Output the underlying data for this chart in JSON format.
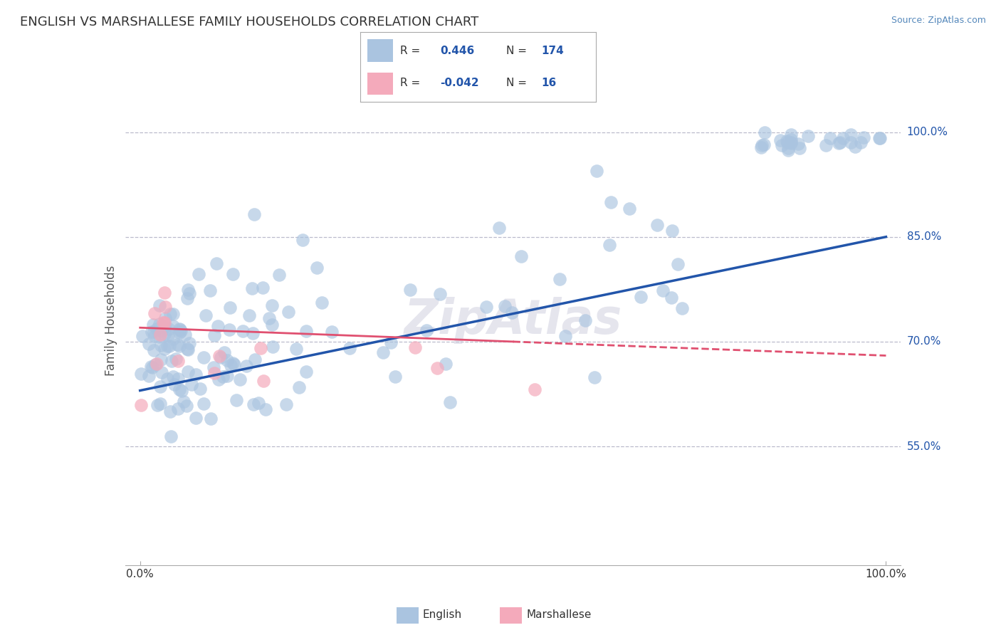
{
  "title": "ENGLISH VS MARSHALLESE FAMILY HOUSEHOLDS CORRELATION CHART",
  "source": "Source: ZipAtlas.com",
  "ylabel": "Family Households",
  "watermark": "ZipAtlas",
  "xlim": [
    -0.02,
    1.02
  ],
  "ylim": [
    0.38,
    1.08
  ],
  "yticks": [
    0.55,
    0.7,
    0.85,
    1.0
  ],
  "ytick_labels": [
    "55.0%",
    "70.0%",
    "85.0%",
    "100.0%"
  ],
  "xtick_labels": [
    "0.0%",
    "100.0%"
  ],
  "english_R": 0.446,
  "english_N": 174,
  "marshallese_R": -0.042,
  "marshallese_N": 16,
  "english_color": "#aac4e0",
  "english_line_color": "#2255aa",
  "marshallese_color": "#f4aabb",
  "marshallese_line_color": "#e05070",
  "bg_color": "#ffffff",
  "grid_color": "#bbbbcc",
  "title_color": "#333333",
  "eng_line_x0": 0.0,
  "eng_line_x1": 1.0,
  "eng_line_y0": 0.63,
  "eng_line_y1": 0.85,
  "marsh_line_x0": 0.0,
  "marsh_line_x1": 1.0,
  "marsh_line_y0": 0.72,
  "marsh_line_y1": 0.68
}
